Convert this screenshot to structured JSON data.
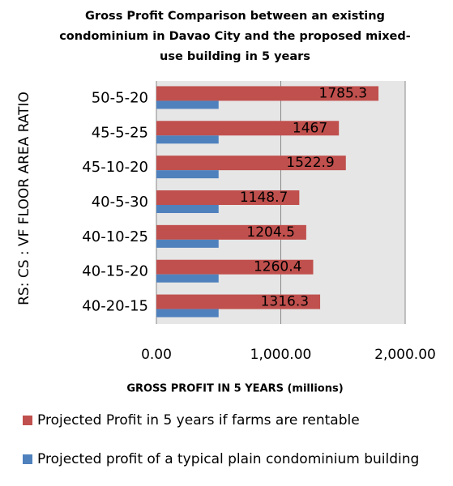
{
  "chart_data": {
    "type": "bar",
    "orientation": "horizontal",
    "title": "Gross Profit Comparison between an existing condominium in Davao City and the proposed mixed-use building in 5 years",
    "x_label": "GROSS PROFIT  IN 5 YEARS (millions)",
    "y_label": "RS: CS : VF FLOOR AREA RATIO",
    "categories": [
      "50-5-20",
      "45-5-25",
      "45-10-20",
      "40-5-30",
      "40-10-25",
      "40-15-20",
      "40-20-15"
    ],
    "series": [
      {
        "name": "Projected Profit in 5 years if farms are rentable",
        "color": "#c0504d",
        "values": [
          1785.3,
          1467,
          1522.9,
          1148.7,
          1204.5,
          1260.4,
          1316.3
        ]
      },
      {
        "name": "Projected profit of a typical plain condominium building",
        "color": "#4f81bd",
        "values": [
          500,
          500,
          500,
          500,
          500,
          500,
          500
        ]
      }
    ],
    "xlim": [
      0,
      2000
    ],
    "xticks": [
      {
        "value": 0,
        "label": "0.00"
      },
      {
        "value": 1000,
        "label": "1,000.00"
      },
      {
        "value": 2000,
        "label": "2,000.00"
      }
    ],
    "grid": true,
    "legend": "bottom"
  }
}
